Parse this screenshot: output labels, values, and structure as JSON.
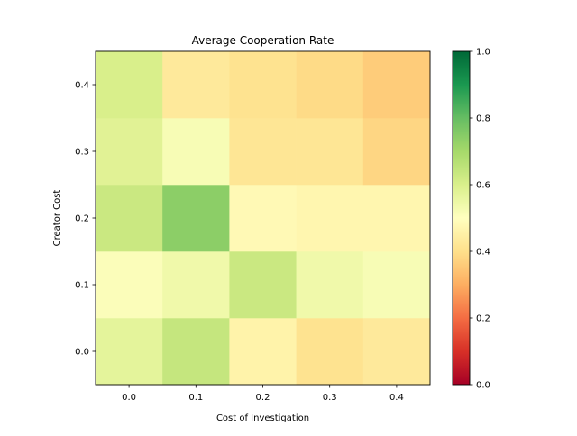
{
  "chart_data": {
    "type": "heatmap",
    "title": "Average Cooperation Rate",
    "xlabel": "Cost of Investigation",
    "ylabel": "Creator Cost",
    "x_categories": [
      "0.0",
      "0.1",
      "0.2",
      "0.3",
      "0.4"
    ],
    "y_categories": [
      "0.0",
      "0.1",
      "0.2",
      "0.3",
      "0.4"
    ],
    "values": [
      [
        0.57,
        0.64,
        0.46,
        0.41,
        0.43
      ],
      [
        0.51,
        0.54,
        0.63,
        0.54,
        0.52
      ],
      [
        0.63,
        0.74,
        0.48,
        0.47,
        0.47
      ],
      [
        0.58,
        0.52,
        0.42,
        0.42,
        0.38
      ],
      [
        0.6,
        0.43,
        0.41,
        0.39,
        0.36
      ]
    ],
    "colormap": "RdYlGn",
    "colorbar": {
      "range": [
        0.0,
        1.0
      ],
      "ticks": [
        "0.0",
        "0.2",
        "0.4",
        "0.6",
        "0.8",
        "1.0"
      ],
      "tick_values": [
        0.0,
        0.2,
        0.4,
        0.6,
        0.8,
        1.0
      ]
    },
    "colormap_stops": [
      "#a50026",
      "#d73027",
      "#f46d43",
      "#fdae61",
      "#fee08b",
      "#ffffbf",
      "#d9ef8b",
      "#a6d96a",
      "#66bd63",
      "#1a9850",
      "#006837"
    ]
  }
}
